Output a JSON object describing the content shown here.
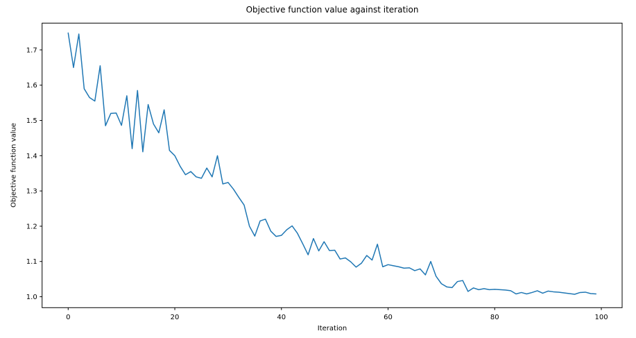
{
  "chart_data": {
    "type": "line",
    "title": "Objective function value against iteration",
    "xlabel": "Iteration",
    "ylabel": "Objective function value",
    "x_description": "iteration index, one point per iteration 0..99",
    "series": [
      {
        "name": "objective-function-value",
        "color": "#1f77b4",
        "values": [
          1.748,
          1.65,
          1.745,
          1.59,
          1.565,
          1.555,
          1.655,
          1.485,
          1.52,
          1.521,
          1.486,
          1.57,
          1.42,
          1.585,
          1.411,
          1.545,
          1.49,
          1.465,
          1.53,
          1.415,
          1.4,
          1.37,
          1.346,
          1.355,
          1.34,
          1.336,
          1.365,
          1.34,
          1.4,
          1.32,
          1.324,
          1.305,
          1.282,
          1.26,
          1.2,
          1.172,
          1.215,
          1.22,
          1.186,
          1.171,
          1.174,
          1.19,
          1.201,
          1.18,
          1.15,
          1.119,
          1.165,
          1.13,
          1.156,
          1.131,
          1.132,
          1.107,
          1.11,
          1.099,
          1.084,
          1.095,
          1.117,
          1.104,
          1.149,
          1.085,
          1.091,
          1.088,
          1.085,
          1.081,
          1.082,
          1.074,
          1.079,
          1.062,
          1.1,
          1.058,
          1.037,
          1.028,
          1.026,
          1.043,
          1.046,
          1.015,
          1.025,
          1.02,
          1.023,
          1.02,
          1.021,
          1.02,
          1.019,
          1.017,
          1.008,
          1.012,
          1.008,
          1.012,
          1.017,
          1.01,
          1.016,
          1.014,
          1.013,
          1.011,
          1.009,
          1.007,
          1.012,
          1.013,
          1.009,
          1.008
        ]
      }
    ],
    "xlim": [
      -4.89,
      103.9
    ],
    "ylim": [
      0.969,
      1.776
    ],
    "xticks": [
      0,
      20,
      40,
      60,
      80,
      100
    ],
    "yticks": [
      1.0,
      1.1,
      1.2,
      1.3,
      1.4,
      1.5,
      1.6,
      1.7
    ],
    "grid": false,
    "legend_position": "none",
    "line_width": 1.5,
    "spine_color": "#000000",
    "background_color": "#ffffff"
  }
}
